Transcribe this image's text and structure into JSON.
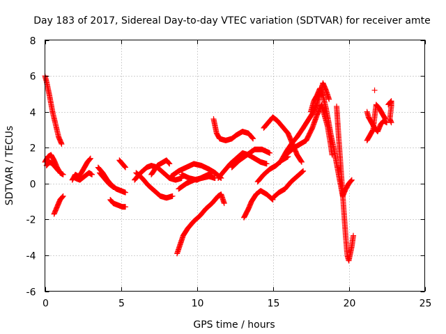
{
  "chart_data": {
    "type": "scatter",
    "title": "Day 183 of 2017, Sidereal Day-to-day VTEC variation (SDTVAR) for receiver amte",
    "xlabel": "GPS time / hours",
    "ylabel": "SDTVAR / TECUs",
    "xlim": [
      0,
      25
    ],
    "ylim": [
      -6,
      8
    ],
    "xticks": [
      0,
      5,
      10,
      15,
      20,
      25
    ],
    "yticks": [
      -6,
      -4,
      -2,
      0,
      2,
      4,
      6,
      8
    ],
    "grid": true,
    "marker": "+",
    "color": "#ff0000",
    "segments": [
      {
        "name": "arc-01",
        "points": [
          [
            0.0,
            6.0
          ],
          [
            0.1,
            5.7
          ],
          [
            0.3,
            4.9
          ],
          [
            0.5,
            4.0
          ],
          [
            0.7,
            3.3
          ],
          [
            0.9,
            2.6
          ],
          [
            1.1,
            2.2
          ]
        ]
      },
      {
        "name": "arc-02",
        "points": [
          [
            0.0,
            1.2
          ],
          [
            0.2,
            1.5
          ],
          [
            0.4,
            1.6
          ],
          [
            0.6,
            1.3
          ],
          [
            0.8,
            0.9
          ],
          [
            1.0,
            0.6
          ],
          [
            1.2,
            0.5
          ]
        ]
      },
      {
        "name": "arc-03",
        "points": [
          [
            0.1,
            1.0
          ],
          [
            0.3,
            1.2
          ],
          [
            0.5,
            1.1
          ],
          [
            0.7,
            0.9
          ],
          [
            0.9,
            0.7
          ]
        ]
      },
      {
        "name": "arc-04",
        "points": [
          [
            0.6,
            -1.7
          ],
          [
            0.8,
            -1.3
          ],
          [
            1.0,
            -0.9
          ],
          [
            1.2,
            -0.7
          ]
        ]
      },
      {
        "name": "arc-05",
        "points": [
          [
            1.8,
            0.2
          ],
          [
            2.0,
            0.5
          ],
          [
            2.2,
            0.4
          ],
          [
            2.4,
            0.6
          ],
          [
            2.6,
            0.9
          ],
          [
            2.8,
            1.2
          ],
          [
            3.0,
            1.4
          ]
        ]
      },
      {
        "name": "arc-06",
        "points": [
          [
            2.0,
            0.3
          ],
          [
            2.3,
            0.2
          ],
          [
            2.6,
            0.4
          ],
          [
            2.9,
            0.6
          ],
          [
            3.1,
            0.5
          ]
        ]
      },
      {
        "name": "arc-07",
        "points": [
          [
            3.5,
            0.9
          ],
          [
            3.8,
            0.6
          ],
          [
            4.1,
            0.2
          ],
          [
            4.4,
            -0.1
          ],
          [
            4.7,
            -0.3
          ],
          [
            5.0,
            -0.4
          ],
          [
            5.3,
            -0.5
          ]
        ]
      },
      {
        "name": "arc-08",
        "points": [
          [
            3.6,
            0.6
          ],
          [
            3.9,
            0.3
          ],
          [
            4.2,
            0.0
          ],
          [
            4.5,
            -0.2
          ]
        ]
      },
      {
        "name": "arc-09",
        "points": [
          [
            4.3,
            -0.9
          ],
          [
            4.5,
            -1.1
          ],
          [
            4.8,
            -1.2
          ],
          [
            5.1,
            -1.3
          ],
          [
            5.3,
            -1.3
          ]
        ]
      },
      {
        "name": "arc-10",
        "points": [
          [
            4.9,
            1.3
          ],
          [
            5.1,
            1.1
          ],
          [
            5.3,
            0.9
          ]
        ]
      },
      {
        "name": "arc-11",
        "points": [
          [
            5.9,
            0.2
          ],
          [
            6.3,
            0.6
          ],
          [
            6.7,
            0.9
          ],
          [
            7.0,
            1.0
          ],
          [
            7.4,
            0.9
          ],
          [
            7.8,
            0.6
          ],
          [
            8.2,
            0.3
          ],
          [
            8.6,
            0.2
          ],
          [
            9.0,
            0.3
          ]
        ]
      },
      {
        "name": "arc-12",
        "points": [
          [
            6.0,
            0.6
          ],
          [
            6.4,
            0.3
          ],
          [
            6.8,
            -0.1
          ],
          [
            7.2,
            -0.4
          ],
          [
            7.6,
            -0.7
          ],
          [
            8.0,
            -0.8
          ],
          [
            8.4,
            -0.7
          ]
        ]
      },
      {
        "name": "arc-13",
        "points": [
          [
            7.0,
            0.5
          ],
          [
            7.4,
            1.0
          ],
          [
            7.8,
            1.2
          ],
          [
            8.0,
            1.3
          ],
          [
            8.2,
            1.1
          ]
        ]
      },
      {
        "name": "arc-14",
        "points": [
          [
            8.3,
            0.4
          ],
          [
            8.8,
            0.7
          ],
          [
            9.3,
            0.9
          ],
          [
            9.8,
            1.1
          ],
          [
            10.3,
            1.0
          ],
          [
            10.8,
            0.8
          ],
          [
            11.2,
            0.6
          ],
          [
            11.6,
            0.3
          ]
        ]
      },
      {
        "name": "arc-15",
        "points": [
          [
            8.8,
            -0.3
          ],
          [
            9.3,
            0.0
          ],
          [
            9.8,
            0.2
          ],
          [
            10.3,
            0.3
          ],
          [
            10.8,
            0.4
          ],
          [
            11.2,
            0.3
          ]
        ]
      },
      {
        "name": "arc-16",
        "points": [
          [
            9.0,
            0.5
          ],
          [
            9.5,
            0.3
          ],
          [
            10.0,
            0.2
          ],
          [
            10.5,
            0.4
          ],
          [
            11.0,
            0.6
          ]
        ]
      },
      {
        "name": "arc-17",
        "points": [
          [
            8.7,
            -3.9
          ],
          [
            8.9,
            -3.4
          ],
          [
            9.1,
            -2.9
          ],
          [
            9.4,
            -2.5
          ],
          [
            9.8,
            -2.1
          ],
          [
            10.2,
            -1.8
          ],
          [
            10.6,
            -1.4
          ],
          [
            11.0,
            -1.1
          ],
          [
            11.4,
            -0.7
          ],
          [
            11.6,
            -0.6
          ],
          [
            11.8,
            -1.1
          ]
        ]
      },
      {
        "name": "arc-18",
        "points": [
          [
            11.1,
            3.6
          ],
          [
            11.3,
            2.8
          ],
          [
            11.5,
            2.5
          ],
          [
            11.9,
            2.4
          ],
          [
            12.3,
            2.5
          ],
          [
            12.6,
            2.7
          ],
          [
            13.0,
            2.9
          ],
          [
            13.4,
            2.8
          ],
          [
            13.7,
            2.5
          ]
        ]
      },
      {
        "name": "arc-19",
        "points": [
          [
            11.4,
            0.3
          ],
          [
            11.8,
            0.7
          ],
          [
            12.2,
            1.1
          ],
          [
            12.6,
            1.4
          ],
          [
            13.0,
            1.7
          ],
          [
            13.4,
            1.6
          ],
          [
            13.8,
            1.4
          ],
          [
            14.2,
            1.2
          ],
          [
            14.6,
            1.1
          ]
        ]
      },
      {
        "name": "arc-20",
        "points": [
          [
            12.3,
            0.9
          ],
          [
            12.8,
            1.3
          ],
          [
            13.3,
            1.6
          ],
          [
            13.8,
            1.9
          ],
          [
            14.3,
            1.9
          ],
          [
            14.8,
            1.7
          ]
        ]
      },
      {
        "name": "arc-21",
        "points": [
          [
            13.1,
            -1.9
          ],
          [
            13.4,
            -1.4
          ],
          [
            13.6,
            -1.0
          ],
          [
            13.9,
            -0.6
          ],
          [
            14.2,
            -0.4
          ],
          [
            14.6,
            -0.6
          ],
          [
            15.0,
            -0.9
          ]
        ]
      },
      {
        "name": "arc-22",
        "points": [
          [
            14.0,
            0.1
          ],
          [
            14.4,
            0.5
          ],
          [
            14.8,
            0.8
          ],
          [
            15.2,
            1.0
          ],
          [
            15.6,
            1.3
          ],
          [
            16.0,
            1.5
          ]
        ]
      },
      {
        "name": "arc-23",
        "points": [
          [
            14.4,
            3.1
          ],
          [
            14.8,
            3.5
          ],
          [
            15.0,
            3.7
          ],
          [
            15.3,
            3.5
          ],
          [
            15.6,
            3.2
          ],
          [
            16.0,
            2.8
          ],
          [
            16.3,
            2.2
          ],
          [
            16.6,
            1.6
          ],
          [
            16.9,
            1.2
          ]
        ]
      },
      {
        "name": "arc-24",
        "points": [
          [
            15.0,
            -0.8
          ],
          [
            15.4,
            -0.5
          ],
          [
            15.8,
            -0.3
          ],
          [
            16.2,
            0.1
          ],
          [
            16.6,
            0.4
          ],
          [
            17.0,
            0.7
          ]
        ]
      },
      {
        "name": "arc-25",
        "points": [
          [
            15.5,
            1.2
          ],
          [
            15.9,
            1.8
          ],
          [
            16.3,
            2.3
          ],
          [
            16.6,
            2.6
          ],
          [
            17.0,
            3.1
          ],
          [
            17.3,
            3.5
          ],
          [
            17.6,
            3.9
          ],
          [
            17.9,
            4.4
          ],
          [
            18.1,
            5.0
          ],
          [
            18.3,
            5.6
          ],
          [
            18.5,
            5.2
          ],
          [
            18.7,
            4.7
          ]
        ]
      },
      {
        "name": "arc-26",
        "points": [
          [
            16.0,
            1.7
          ],
          [
            16.4,
            2.0
          ],
          [
            16.8,
            2.2
          ],
          [
            17.2,
            2.4
          ],
          [
            17.6,
            3.1
          ],
          [
            17.9,
            3.8
          ],
          [
            18.2,
            4.4
          ],
          [
            18.4,
            3.8
          ],
          [
            18.6,
            3.2
          ],
          [
            18.8,
            2.2
          ],
          [
            18.9,
            1.6
          ]
        ]
      },
      {
        "name": "arc-27",
        "points": [
          [
            17.5,
            4.0
          ],
          [
            17.7,
            4.6
          ],
          [
            17.9,
            4.9
          ],
          [
            18.1,
            5.3
          ],
          [
            18.3,
            4.9
          ],
          [
            18.5,
            4.2
          ],
          [
            18.7,
            3.3
          ],
          [
            18.8,
            2.8
          ],
          [
            19.0,
            2.0
          ],
          [
            19.2,
            1.1
          ],
          [
            19.4,
            0.2
          ],
          [
            19.6,
            -0.7
          ],
          [
            19.8,
            -0.3
          ],
          [
            20.0,
            0.0
          ],
          [
            20.2,
            0.2
          ]
        ]
      },
      {
        "name": "arc-28",
        "points": [
          [
            19.2,
            4.3
          ],
          [
            19.3,
            3.0
          ],
          [
            19.4,
            1.8
          ],
          [
            19.5,
            0.6
          ],
          [
            19.6,
            -0.6
          ],
          [
            19.7,
            -1.8
          ],
          [
            19.8,
            -3.0
          ],
          [
            19.9,
            -4.0
          ],
          [
            20.0,
            -4.3
          ],
          [
            20.2,
            -3.5
          ],
          [
            20.3,
            -2.9
          ]
        ]
      },
      {
        "name": "arc-29",
        "points": [
          [
            21.2,
            4.0
          ],
          [
            21.3,
            3.7
          ],
          [
            21.5,
            3.4
          ],
          [
            21.7,
            3.1
          ],
          [
            21.9,
            2.9
          ]
        ]
      },
      {
        "name": "arc-30",
        "points": [
          [
            21.2,
            2.4
          ],
          [
            21.4,
            2.7
          ],
          [
            21.6,
            3.0
          ],
          [
            21.8,
            4.4
          ],
          [
            22.0,
            4.2
          ],
          [
            22.2,
            3.9
          ],
          [
            22.4,
            3.6
          ]
        ]
      },
      {
        "name": "arc-31",
        "points": [
          [
            21.7,
            5.2
          ]
        ]
      },
      {
        "name": "arc-32",
        "points": [
          [
            21.9,
            2.9
          ],
          [
            22.1,
            3.3
          ],
          [
            22.3,
            3.5
          ],
          [
            22.5,
            3.4
          ]
        ]
      },
      {
        "name": "arc-33",
        "points": [
          [
            22.6,
            4.4
          ],
          [
            22.8,
            4.6
          ],
          [
            22.8,
            4.3
          ],
          [
            22.7,
            3.6
          ],
          [
            22.8,
            3.4
          ]
        ]
      }
    ]
  }
}
